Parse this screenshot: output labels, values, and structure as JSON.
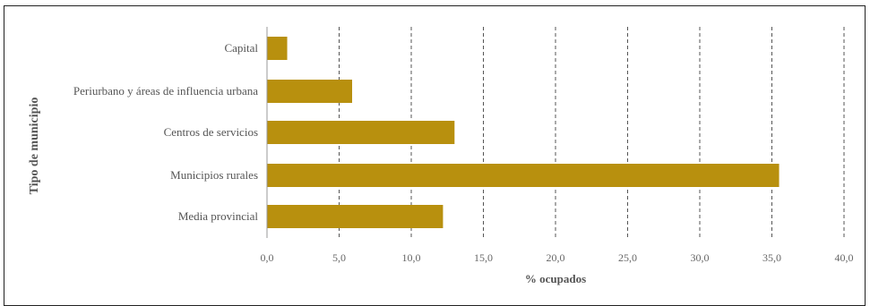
{
  "chart_data": {
    "type": "bar",
    "orientation": "horizontal",
    "categories": [
      "Capital",
      "Periurbano y áreas de influencia urbana",
      "Centros de servicios",
      "Municipios rurales",
      "Media provincial"
    ],
    "values": [
      1.4,
      5.9,
      13.0,
      35.5,
      12.2
    ],
    "xlabel": "% ocupados",
    "ylabel": "Tipo de municipio",
    "xlim": [
      0,
      40
    ],
    "xticks": [
      "0,0",
      "5,0",
      "10,0",
      "15,0",
      "20,0",
      "25,0",
      "30,0",
      "35,0",
      "40,0"
    ],
    "grid": "vertical dashed",
    "bar_color": "#B8900E"
  }
}
